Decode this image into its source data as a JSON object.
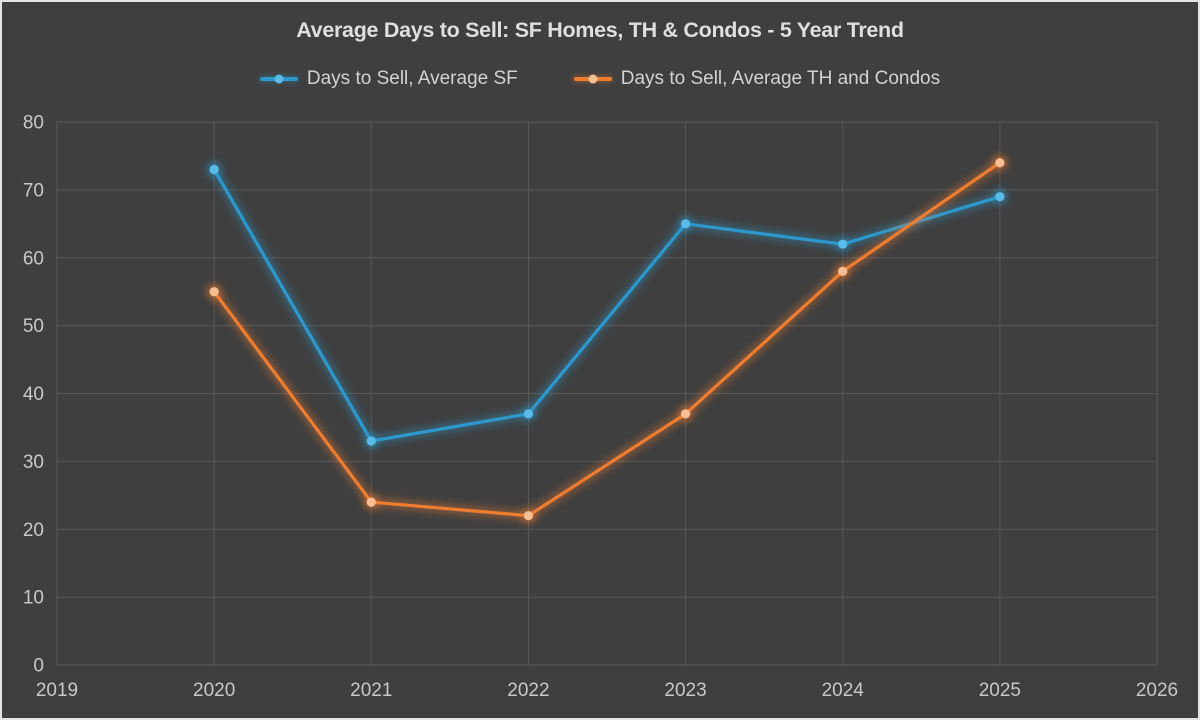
{
  "window": {
    "background": "#3F3F3F",
    "border_color": "#E4E4E4",
    "grid_color": "#585858",
    "tick_text_color": "#C8C8C8",
    "title_color": "#DFDFDF",
    "legend_text_color": "#D2D2D2"
  },
  "chart_data": {
    "type": "line",
    "title": "Average Days to Sell: SF Homes, TH & Condos - 5 Year Trend",
    "xlabel": "",
    "ylabel": "",
    "legend_position": "top",
    "grid": true,
    "x_axis": {
      "min": 2019,
      "max": 2026,
      "ticks": [
        2019,
        2020,
        2021,
        2022,
        2023,
        2024,
        2025,
        2026
      ]
    },
    "y_axis": {
      "min": 0,
      "max": 80,
      "ticks": [
        0,
        10,
        20,
        30,
        40,
        50,
        60,
        70,
        80
      ]
    },
    "x": [
      2020,
      2021,
      2022,
      2023,
      2024,
      2025
    ],
    "series": [
      {
        "name": "Days to Sell, Average SF",
        "color": "#2E97CB",
        "marker_fill": "#5ABAE8",
        "values": [
          73,
          33,
          37,
          65,
          62,
          69
        ]
      },
      {
        "name": "Days to Sell, Average TH and Condos",
        "color": "#ED7D31",
        "marker_fill": "#F8BE93",
        "values": [
          55,
          24,
          22,
          37,
          58,
          74
        ]
      }
    ]
  }
}
